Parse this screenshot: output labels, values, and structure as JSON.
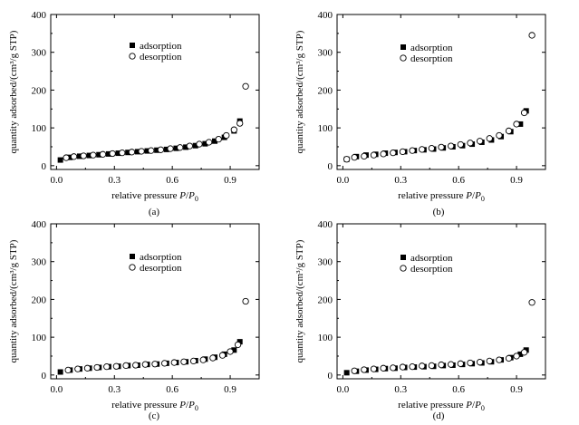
{
  "chart_data": [
    {
      "type": "scatter",
      "panel_label": "(a)",
      "xlabel_main": "relative pressure ",
      "xlabel_p": "P",
      "xlabel_slash": "/",
      "xlabel_p0": "P",
      "xlabel_sub": "0",
      "ylabel": "quantity adsorbed/(cm³/g STP)",
      "xlim": [
        -0.03,
        1.05
      ],
      "ylim": [
        -10,
        400
      ],
      "xticks": [
        "0.0",
        "0.3",
        "0.6",
        "0.9"
      ],
      "xtick_values": [
        0.0,
        0.3,
        0.6,
        0.9
      ],
      "yticks": [
        "0",
        "100",
        "200",
        "300",
        "400"
      ],
      "ytick_values": [
        0,
        100,
        200,
        300,
        400
      ],
      "legend": [
        "adsorption",
        "desorption"
      ],
      "series": [
        {
          "name": "adsorption",
          "marker": "filled-square",
          "x": [
            0.02,
            0.07,
            0.12,
            0.17,
            0.22,
            0.27,
            0.32,
            0.37,
            0.42,
            0.47,
            0.52,
            0.57,
            0.62,
            0.67,
            0.72,
            0.77,
            0.82,
            0.87,
            0.92,
            0.95
          ],
          "y": [
            15,
            22,
            25,
            27,
            29,
            31,
            33,
            35,
            37,
            39,
            41,
            43,
            46,
            49,
            53,
            58,
            65,
            75,
            92,
            118
          ]
        },
        {
          "name": "desorption",
          "marker": "open-circle",
          "x": [
            0.98,
            0.95,
            0.92,
            0.88,
            0.84,
            0.79,
            0.74,
            0.69,
            0.64,
            0.59,
            0.54,
            0.49,
            0.44,
            0.39,
            0.34,
            0.29,
            0.24,
            0.19,
            0.14,
            0.09,
            0.05
          ],
          "y": [
            210,
            112,
            95,
            80,
            70,
            62,
            57,
            52,
            48,
            45,
            42,
            40,
            38,
            36,
            34,
            32,
            30,
            28,
            26,
            24,
            21
          ]
        }
      ]
    },
    {
      "type": "scatter",
      "panel_label": "(b)",
      "xlabel_main": "relative pressure ",
      "xlabel_p": "P",
      "xlabel_slash": "/",
      "xlabel_p0": "P",
      "xlabel_sub": "0",
      "ylabel": "quantity adsorbed/(cm³/g STP)",
      "xlim": [
        -0.03,
        1.05
      ],
      "ylim": [
        -10,
        400
      ],
      "xticks": [
        "0.0",
        "0.3",
        "0.6",
        "0.9"
      ],
      "xtick_values": [
        0.0,
        0.3,
        0.6,
        0.9
      ],
      "yticks": [
        "0",
        "100",
        "200",
        "300",
        "400"
      ],
      "ytick_values": [
        0,
        100,
        200,
        300,
        400
      ],
      "legend": [
        "adsorption",
        "desorption"
      ],
      "series": [
        {
          "name": "adsorption",
          "marker": "filled-square",
          "x": [
            0.02,
            0.07,
            0.12,
            0.17,
            0.22,
            0.27,
            0.32,
            0.37,
            0.42,
            0.47,
            0.52,
            0.57,
            0.62,
            0.67,
            0.72,
            0.77,
            0.82,
            0.87,
            0.92,
            0.95
          ],
          "y": [
            17,
            24,
            28,
            30,
            33,
            35,
            37,
            40,
            42,
            44,
            47,
            50,
            53,
            57,
            62,
            68,
            77,
            90,
            110,
            145
          ]
        },
        {
          "name": "desorption",
          "marker": "open-circle",
          "x": [
            0.98,
            0.94,
            0.9,
            0.86,
            0.81,
            0.76,
            0.71,
            0.66,
            0.61,
            0.56,
            0.51,
            0.46,
            0.41,
            0.36,
            0.31,
            0.26,
            0.21,
            0.16,
            0.11,
            0.06,
            0.02
          ],
          "y": [
            345,
            140,
            110,
            92,
            80,
            72,
            65,
            60,
            56,
            52,
            49,
            46,
            43,
            40,
            37,
            34,
            31,
            28,
            25,
            22,
            17
          ]
        }
      ]
    },
    {
      "type": "scatter",
      "panel_label": "(c)",
      "xlabel_main": "relative pressure ",
      "xlabel_p": "P",
      "xlabel_slash": "/",
      "xlabel_p0": "P",
      "xlabel_sub": "0",
      "ylabel": "quantity adsorbed/(cm³/g STP)",
      "xlim": [
        -0.03,
        1.05
      ],
      "ylim": [
        -10,
        400
      ],
      "xticks": [
        "0.0",
        "0.3",
        "0.6",
        "0.9"
      ],
      "xtick_values": [
        0.0,
        0.3,
        0.6,
        0.9
      ],
      "yticks": [
        "0",
        "100",
        "200",
        "300",
        "400"
      ],
      "ytick_values": [
        0,
        100,
        200,
        300,
        400
      ],
      "legend": [
        "adsorption",
        "desorption"
      ],
      "series": [
        {
          "name": "adsorption",
          "marker": "filled-square",
          "x": [
            0.02,
            0.07,
            0.12,
            0.17,
            0.22,
            0.27,
            0.32,
            0.37,
            0.42,
            0.47,
            0.52,
            0.57,
            0.62,
            0.67,
            0.72,
            0.77,
            0.82,
            0.87,
            0.92,
            0.95
          ],
          "y": [
            8,
            13,
            16,
            18,
            20,
            22,
            23,
            25,
            26,
            28,
            29,
            31,
            33,
            35,
            38,
            42,
            47,
            55,
            66,
            88
          ]
        },
        {
          "name": "desorption",
          "marker": "open-circle",
          "x": [
            0.98,
            0.94,
            0.9,
            0.86,
            0.81,
            0.76,
            0.71,
            0.66,
            0.61,
            0.56,
            0.51,
            0.46,
            0.41,
            0.36,
            0.31,
            0.26,
            0.21,
            0.16,
            0.11,
            0.06
          ],
          "y": [
            195,
            80,
            62,
            52,
            45,
            40,
            37,
            35,
            33,
            31,
            29,
            28,
            26,
            25,
            23,
            22,
            20,
            18,
            16,
            13
          ]
        }
      ]
    },
    {
      "type": "scatter",
      "panel_label": "(d)",
      "xlabel_main": "relative pressure ",
      "xlabel_p": "P",
      "xlabel_slash": "/",
      "xlabel_p0": "P",
      "xlabel_sub": "0",
      "ylabel": "quantity adsorbed/(cm³/g STP)",
      "xlim": [
        -0.03,
        1.05
      ],
      "ylim": [
        -10,
        400
      ],
      "xticks": [
        "0.0",
        "0.3",
        "0.6",
        "0.9"
      ],
      "xtick_values": [
        0.0,
        0.3,
        0.6,
        0.9
      ],
      "yticks": [
        "0",
        "100",
        "200",
        "300",
        "400"
      ],
      "ytick_values": [
        0,
        100,
        200,
        300,
        400
      ],
      "legend": [
        "adsorption",
        "desorption"
      ],
      "series": [
        {
          "name": "adsorption",
          "marker": "filled-square",
          "x": [
            0.02,
            0.07,
            0.12,
            0.17,
            0.22,
            0.27,
            0.32,
            0.37,
            0.42,
            0.47,
            0.52,
            0.57,
            0.62,
            0.67,
            0.72,
            0.77,
            0.82,
            0.87,
            0.92,
            0.95
          ],
          "y": [
            6,
            10,
            13,
            15,
            17,
            18,
            20,
            21,
            22,
            23,
            25,
            26,
            28,
            30,
            32,
            35,
            40,
            46,
            55,
            66
          ]
        },
        {
          "name": "desorption",
          "marker": "open-circle",
          "x": [
            0.98,
            0.94,
            0.9,
            0.86,
            0.81,
            0.76,
            0.71,
            0.66,
            0.61,
            0.56,
            0.51,
            0.46,
            0.41,
            0.36,
            0.31,
            0.26,
            0.21,
            0.16,
            0.11,
            0.06
          ],
          "y": [
            192,
            60,
            50,
            44,
            40,
            37,
            34,
            32,
            30,
            28,
            27,
            25,
            24,
            22,
            21,
            19,
            18,
            16,
            14,
            11
          ]
        }
      ]
    }
  ]
}
